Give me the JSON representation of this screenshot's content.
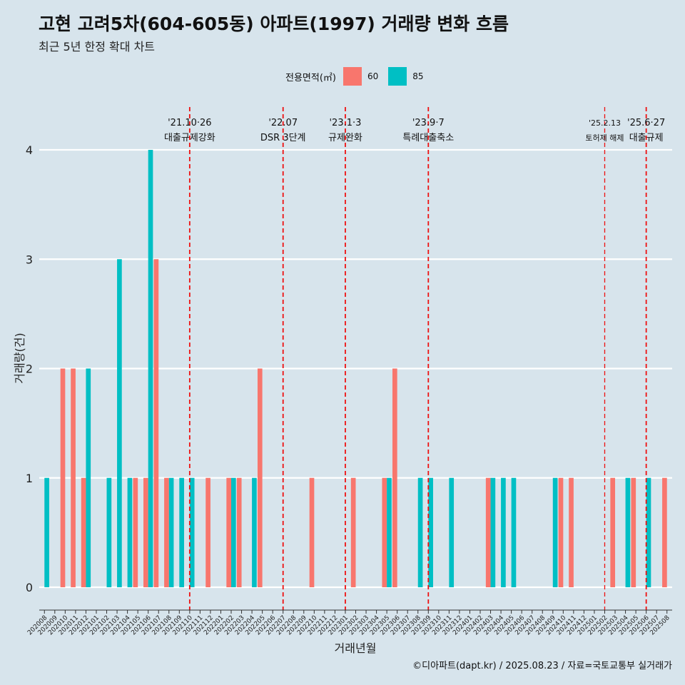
{
  "header": {
    "title": "고현 고려5차(604-605동) 아파트(1997) 거래량 변화 흐름",
    "subtitle": "최근 5년 한정 확대 차트"
  },
  "legend": {
    "title": "전용면적(㎡)",
    "items": [
      {
        "label": "60",
        "color": "#f8766d"
      },
      {
        "label": "85",
        "color": "#00bfc4"
      }
    ]
  },
  "caption": "©디아파트(dapt.kr) / 2025.08.23 / 자료=국토교통부 실거래가",
  "chart_data": {
    "type": "bar",
    "xlabel": "거래년월",
    "ylabel": "거래량(건)",
    "ylim": [
      0,
      4
    ],
    "yticks": [
      0,
      1,
      2,
      3,
      4
    ],
    "categories": [
      "202008",
      "202009",
      "202010",
      "202011",
      "202012",
      "202101",
      "202102",
      "202103",
      "202104",
      "202105",
      "202106",
      "202107",
      "202108",
      "202109",
      "202110",
      "202111",
      "202112",
      "202201",
      "202202",
      "202203",
      "202204",
      "202205",
      "202206",
      "202207",
      "202208",
      "202209",
      "202210",
      "202211",
      "202212",
      "202301",
      "202302",
      "202303",
      "202304",
      "202305",
      "202306",
      "202307",
      "202308",
      "202309",
      "202310",
      "202311",
      "202312",
      "202401",
      "202402",
      "202403",
      "202404",
      "202405",
      "202406",
      "202407",
      "202408",
      "202409",
      "202410",
      "202411",
      "202412",
      "202501",
      "202502",
      "202503",
      "202504",
      "202505",
      "202506",
      "202507",
      "202508"
    ],
    "series": [
      {
        "name": "60",
        "color": "#f8766d",
        "values": [
          0,
          0,
          2,
          2,
          1,
          0,
          0,
          0,
          0,
          1,
          1,
          3,
          1,
          0,
          0,
          0,
          1,
          0,
          1,
          1,
          0,
          2,
          0,
          0,
          0,
          0,
          1,
          0,
          0,
          0,
          1,
          0,
          0,
          1,
          2,
          0,
          0,
          0,
          0,
          0,
          0,
          0,
          0,
          1,
          0,
          0,
          0,
          0,
          0,
          0,
          1,
          1,
          0,
          0,
          0,
          1,
          0,
          1,
          0,
          0,
          1
        ]
      },
      {
        "name": "85",
        "color": "#00bfc4",
        "values": [
          1,
          0,
          0,
          0,
          2,
          0,
          1,
          3,
          1,
          0,
          4,
          0,
          1,
          1,
          1,
          0,
          0,
          0,
          1,
          0,
          1,
          0,
          0,
          0,
          0,
          0,
          0,
          0,
          0,
          0,
          0,
          0,
          0,
          1,
          0,
          0,
          1,
          1,
          0,
          1,
          0,
          0,
          0,
          1,
          1,
          1,
          0,
          0,
          0,
          1,
          0,
          0,
          0,
          0,
          0,
          0,
          1,
          0,
          1,
          0,
          0
        ]
      }
    ],
    "events": [
      {
        "date": "'21.10·26",
        "label": "대출규제강화",
        "position": 14
      },
      {
        "date": "'22.07",
        "label": "DSR 3단계",
        "position": 23
      },
      {
        "date": "'23.1·3",
        "label": "규제완화",
        "position": 29
      },
      {
        "date": "'23.9·7",
        "label": "특례대출축소",
        "position": 37
      },
      {
        "date": "'25.2.13",
        "label": "토허제 해제",
        "position": 54
      },
      {
        "date": "'25.6·27",
        "label": "대출규제",
        "position": 58
      }
    ]
  }
}
